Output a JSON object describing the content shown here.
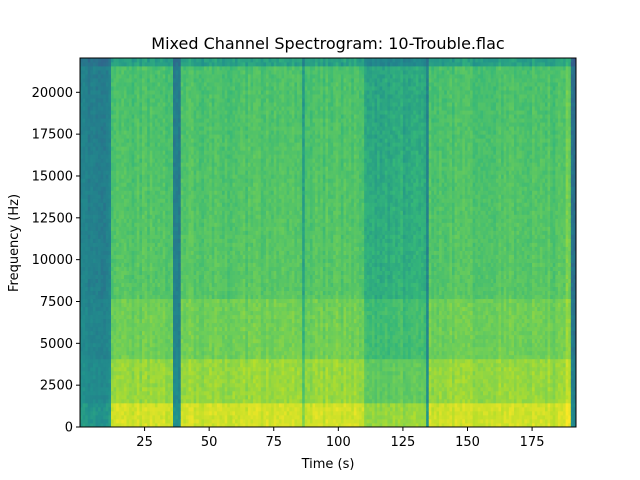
{
  "chart_data": {
    "type": "heatmap",
    "title": "Mixed Channel Spectrogram: 10-Trouble.flac",
    "xlabel": "Time (s)",
    "ylabel": "Frequency (Hz)",
    "xlim": [
      0,
      192
    ],
    "ylim": [
      0,
      22050
    ],
    "x_ticks": [
      25,
      50,
      75,
      100,
      125,
      150,
      175
    ],
    "y_ticks": [
      0,
      2500,
      5000,
      7500,
      10000,
      12500,
      15000,
      17500,
      20000
    ],
    "x_tick_labels": [
      "25",
      "50",
      "75",
      "100",
      "125",
      "150",
      "175"
    ],
    "y_tick_labels": [
      "0",
      "2500",
      "5000",
      "7500",
      "10000",
      "12500",
      "15000",
      "17500",
      "20000"
    ],
    "colormap": "viridis",
    "grid": false,
    "segments": [
      {
        "start": 0,
        "end": 12,
        "level": 0.42
      },
      {
        "start": 12,
        "end": 36.5,
        "level": 0.68
      },
      {
        "start": 36.5,
        "end": 39,
        "level": 0.4
      },
      {
        "start": 39,
        "end": 86,
        "level": 0.68
      },
      {
        "start": 86,
        "end": 87.5,
        "level": 0.55
      },
      {
        "start": 87.5,
        "end": 110,
        "level": 0.68
      },
      {
        "start": 110,
        "end": 134,
        "level": 0.58
      },
      {
        "start": 134,
        "end": 135.5,
        "level": 0.42
      },
      {
        "start": 135.5,
        "end": 188,
        "level": 0.68
      },
      {
        "start": 188,
        "end": 190,
        "level": 0.74
      },
      {
        "start": 190,
        "end": 192,
        "level": 0.35
      }
    ]
  }
}
